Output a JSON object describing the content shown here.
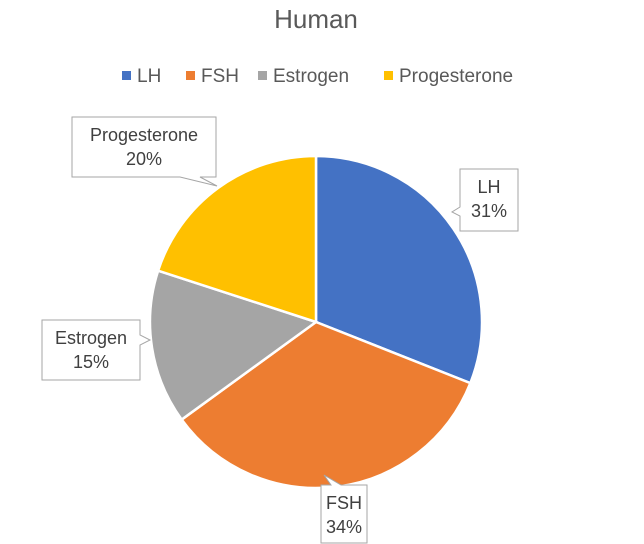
{
  "chart_data": {
    "type": "pie",
    "title": "Human",
    "legend_position": "top",
    "categories": [
      "LH",
      "FSH",
      "Estrogen",
      "Progesterone"
    ],
    "values": [
      31,
      34,
      15,
      20
    ],
    "value_labels": [
      "31%",
      "34%",
      "15%",
      "20%"
    ],
    "colors": [
      "#4472C4",
      "#ED7D31",
      "#A5A5A5",
      "#FFC000"
    ]
  }
}
